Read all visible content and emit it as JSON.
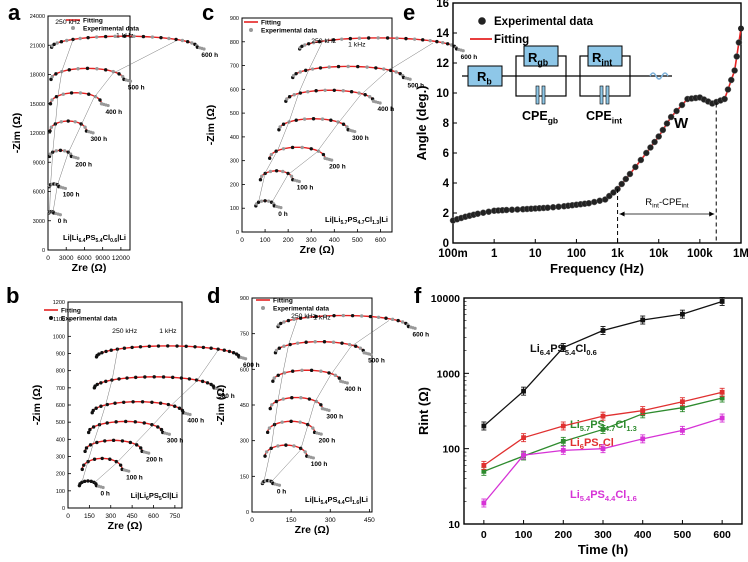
{
  "panel_letters": [
    "a",
    "b",
    "c",
    "d",
    "e",
    "f"
  ],
  "chart_data": [
    {
      "panel": "a",
      "type": "scatter",
      "title": "Li|Li6.4PS5.4Cl0.6|Li",
      "title_parts": [
        [
          "Li|Li",
          ""
        ],
        [
          "6.4",
          "sub"
        ],
        [
          "PS",
          ""
        ],
        [
          "5.4",
          "sub"
        ],
        [
          "Cl",
          ""
        ],
        [
          "0.6",
          "sub"
        ],
        [
          "|Li",
          ""
        ]
      ],
      "xlabel": "Zre (Ω)",
      "ylabel": "-Zim (Ω)",
      "xlim": [
        0,
        13500
      ],
      "ylim": [
        0,
        24000
      ],
      "xticks": [
        0,
        3000,
        6000,
        9000,
        12000
      ],
      "yticks": [
        0,
        3000,
        6000,
        9000,
        12000,
        15000,
        18000,
        21000,
        24000
      ],
      "legend": [
        "Fitting",
        "Experimental data"
      ],
      "annotations": [
        {
          "text": "250 kHz",
          "x": 1200,
          "y": 23200
        },
        {
          "text": "1 kHz",
          "x": 11200,
          "y": 21800
        }
      ],
      "series": [
        {
          "label": "0 h",
          "R": 400,
          "x0": 150,
          "y0": 3800
        },
        {
          "label": "100 h",
          "R": 800,
          "x0": 180,
          "y0": 6500
        },
        {
          "label": "200 h",
          "R": 1800,
          "x0": 250,
          "y0": 9600
        },
        {
          "label": "300 h",
          "R": 3000,
          "x0": 330,
          "y0": 12200
        },
        {
          "label": "400 h",
          "R": 4200,
          "x0": 410,
          "y0": 15000
        },
        {
          "label": "500 h",
          "R": 6000,
          "x0": 500,
          "y0": 17500
        },
        {
          "label": "600 h",
          "R": 12000,
          "x0": 600,
          "y0": 20800
        }
      ]
    },
    {
      "panel": "b",
      "type": "scatter",
      "title": "Li|Li6PS5Cl|Li",
      "title_parts": [
        [
          "Li|Li",
          ""
        ],
        [
          "6",
          "sub"
        ],
        [
          "PS",
          ""
        ],
        [
          "5",
          "sub"
        ],
        [
          "Cl|Li",
          ""
        ]
      ],
      "xlabel": "Zre (Ω)",
      "ylabel": "-Zim (Ω)",
      "xlim": [
        0,
        800
      ],
      "ylim": [
        0,
        1200
      ],
      "xticks": [
        0,
        150,
        300,
        450,
        600,
        750
      ],
      "yticks": [
        0,
        100,
        200,
        300,
        400,
        500,
        600,
        700,
        800,
        900,
        1000,
        1100,
        1200
      ],
      "legend": [
        "Fitting",
        "Experimental data"
      ],
      "annotations": [
        {
          "text": "250 kHz",
          "x": 310,
          "y": 1020
        },
        {
          "text": "1 kHz",
          "x": 640,
          "y": 1020
        }
      ],
      "series": [
        {
          "label": "0 h",
          "R": 60,
          "x0": 80,
          "y0": 130
        },
        {
          "label": "100 h",
          "R": 140,
          "x0": 100,
          "y0": 225
        },
        {
          "label": "200 h",
          "R": 200,
          "x0": 120,
          "y0": 330
        },
        {
          "label": "300 h",
          "R": 260,
          "x0": 145,
          "y0": 440
        },
        {
          "label": "400 h",
          "R": 320,
          "x0": 170,
          "y0": 555
        },
        {
          "label": "500 h",
          "R": 420,
          "x0": 185,
          "y0": 700
        },
        {
          "label": "600 h",
          "R": 500,
          "x0": 200,
          "y0": 880
        }
      ]
    },
    {
      "panel": "c",
      "type": "scatter",
      "title": "Li|Li5.7PS4.7Cl1.3|Li",
      "title_parts": [
        [
          "Li|Li",
          ""
        ],
        [
          "5.7",
          "sub"
        ],
        [
          "PS",
          ""
        ],
        [
          "4.7",
          "sub"
        ],
        [
          "Cl",
          ""
        ],
        [
          "1.3",
          "sub"
        ],
        [
          "|Li",
          ""
        ]
      ],
      "xlabel": "Zre (Ω)",
      "ylabel": "-Zim (Ω)",
      "xlim": [
        0,
        650
      ],
      "ylim": [
        0,
        900
      ],
      "xticks": [
        0,
        100,
        200,
        300,
        400,
        500,
        600
      ],
      "yticks": [
        0,
        100,
        200,
        300,
        400,
        500,
        600,
        700,
        800,
        900
      ],
      "legend": [
        "Fitting",
        "Experimental data"
      ],
      "annotations": [
        {
          "text": "250 kHz",
          "x": 300,
          "y": 795
        },
        {
          "text": "1 kHz",
          "x": 460,
          "y": 780
        }
      ],
      "series": [
        {
          "label": "0 h",
          "R": 40,
          "x0": 60,
          "y0": 110
        },
        {
          "label": "100 h",
          "R": 70,
          "x0": 80,
          "y0": 220
        },
        {
          "label": "200 h",
          "R": 120,
          "x0": 120,
          "y0": 310
        },
        {
          "label": "300 h",
          "R": 150,
          "x0": 160,
          "y0": 430
        },
        {
          "label": "400 h",
          "R": 190,
          "x0": 190,
          "y0": 550
        },
        {
          "label": "500 h",
          "R": 240,
          "x0": 220,
          "y0": 650
        },
        {
          "label": "600 h",
          "R": 340,
          "x0": 250,
          "y0": 770
        }
      ]
    },
    {
      "panel": "d",
      "type": "scatter",
      "title": "Li|Li5.4PS4.4Cl1.6|Li",
      "title_parts": [
        [
          "Li|Li",
          ""
        ],
        [
          "5.4",
          "sub"
        ],
        [
          "PS",
          ""
        ],
        [
          "4.4",
          "sub"
        ],
        [
          "Cl",
          ""
        ],
        [
          "1.6",
          "sub"
        ],
        [
          "|Li",
          ""
        ]
      ],
      "xlabel": "Zre (Ω)",
      "ylabel": "-Zim (Ω)",
      "xlim": [
        0,
        460
      ],
      "ylim": [
        0,
        900
      ],
      "xticks": [
        0,
        150,
        300,
        450
      ],
      "yticks": [
        0,
        150,
        300,
        450,
        600,
        750,
        900
      ],
      "legend": [
        "Fitting",
        "Experimental data"
      ],
      "annotations": [
        {
          "text": "250 kHz",
          "x": 150,
          "y": 815
        },
        {
          "text": "1 kHz",
          "x": 235,
          "y": 810
        }
      ],
      "series": [
        {
          "label": "0 h",
          "R": 20,
          "x0": 40,
          "y0": 120
        },
        {
          "label": "100 h",
          "R": 80,
          "x0": 50,
          "y0": 235
        },
        {
          "label": "200 h",
          "R": 90,
          "x0": 60,
          "y0": 335
        },
        {
          "label": "300 h",
          "R": 100,
          "x0": 70,
          "y0": 435
        },
        {
          "label": "400 h",
          "R": 130,
          "x0": 80,
          "y0": 550
        },
        {
          "label": "500 h",
          "R": 170,
          "x0": 90,
          "y0": 670
        },
        {
          "label": "600 h",
          "R": 250,
          "x0": 100,
          "y0": 780
        }
      ]
    },
    {
      "panel": "e",
      "type": "line",
      "xlabel": "Frequency (Hz)",
      "ylabel": "Angle (deg.)",
      "xscale": "log",
      "xlim": [
        0.1,
        1000000
      ],
      "ylim": [
        0,
        16
      ],
      "xticks": [
        0.1,
        1,
        10,
        100,
        1000,
        10000,
        100000,
        1000000
      ],
      "xticklabels": [
        "100m",
        "1",
        "10",
        "100",
        "1k",
        "10k",
        "100k",
        "1M"
      ],
      "yticks": [
        0,
        2,
        4,
        6,
        8,
        10,
        12,
        14,
        16
      ],
      "legend": [
        "Experimental data",
        "Fitting"
      ],
      "circuit_labels": [
        "Rb",
        "Rgb",
        "Rint",
        "CPEgb",
        "CPEint",
        "W"
      ],
      "bracket_label": "Rint-CPEint",
      "bracket_range": [
        1000,
        250000
      ],
      "points": [
        [
          0.1,
          1.5
        ],
        [
          0.2,
          1.75
        ],
        [
          0.4,
          1.95
        ],
        [
          1,
          2.15
        ],
        [
          2,
          2.2
        ],
        [
          5,
          2.25
        ],
        [
          10,
          2.3
        ],
        [
          20,
          2.35
        ],
        [
          50,
          2.45
        ],
        [
          100,
          2.55
        ],
        [
          200,
          2.65
        ],
        [
          500,
          2.9
        ],
        [
          1000,
          3.6
        ],
        [
          2000,
          4.6
        ],
        [
          5000,
          6.0
        ],
        [
          10000,
          7.1
        ],
        [
          20000,
          8.4
        ],
        [
          50000,
          9.6
        ],
        [
          100000,
          9.7
        ],
        [
          200000,
          9.3
        ],
        [
          400000,
          9.6
        ],
        [
          700000,
          11.5
        ],
        [
          1000000,
          14.3
        ]
      ]
    },
    {
      "panel": "f",
      "type": "line",
      "xlabel": "Time (h)",
      "ylabel": "Rint (Ω)",
      "yscale": "log",
      "xlim": [
        -50,
        650
      ],
      "ylim": [
        10,
        10000
      ],
      "x": [
        0,
        100,
        200,
        300,
        400,
        500,
        600
      ],
      "xticks": [
        0,
        100,
        200,
        300,
        400,
        500,
        600
      ],
      "yticks": [
        10,
        100,
        1000,
        10000
      ],
      "series": [
        {
          "name": "Li6.4PS5.4Cl0.6",
          "name_parts": [
            [
              "Li",
              ""
            ],
            [
              "6.4",
              "sub"
            ],
            [
              "PS",
              ""
            ],
            [
              "5.4",
              "sub"
            ],
            [
              "Cl",
              ""
            ],
            [
              "0.6",
              "sub"
            ]
          ],
          "color": "#111111",
          "values": [
            200,
            580,
            2200,
            3700,
            5100,
            6100,
            9000
          ]
        },
        {
          "name": "Li5.7PS4.7Cl1.3",
          "name_parts": [
            [
              "Li",
              ""
            ],
            [
              "5.7",
              "sub"
            ],
            [
              "PS",
              ""
            ],
            [
              "4.7",
              "sub"
            ],
            [
              "Cl",
              ""
            ],
            [
              "1.3",
              "sub"
            ]
          ],
          "color": "#2e8b2e",
          "values": [
            50,
            80,
            125,
            180,
            290,
            350,
            470
          ]
        },
        {
          "name": "Li6PS5Cl",
          "name_parts": [
            [
              "Li",
              ""
            ],
            [
              "6",
              "sub"
            ],
            [
              "PS",
              ""
            ],
            [
              "5",
              "sub"
            ],
            [
              "Cl",
              ""
            ]
          ],
          "color": "#e03030",
          "values": [
            60,
            140,
            200,
            270,
            320,
            420,
            560
          ]
        },
        {
          "name": "Li5.4PS4.4Cl1.6",
          "name_parts": [
            [
              "Li",
              ""
            ],
            [
              "5.4",
              "sub"
            ],
            [
              "PS",
              ""
            ],
            [
              "4.4",
              "sub"
            ],
            [
              "Cl",
              ""
            ],
            [
              "1.6",
              "sub"
            ]
          ],
          "color": "#d633d6",
          "values": [
            19,
            82,
            95,
            100,
            135,
            175,
            255
          ]
        }
      ]
    }
  ],
  "colors": {
    "fit": "#e52222",
    "point_dark": "#111111",
    "point_gray": "#999999",
    "circuit_box": "#8ec7e8"
  }
}
